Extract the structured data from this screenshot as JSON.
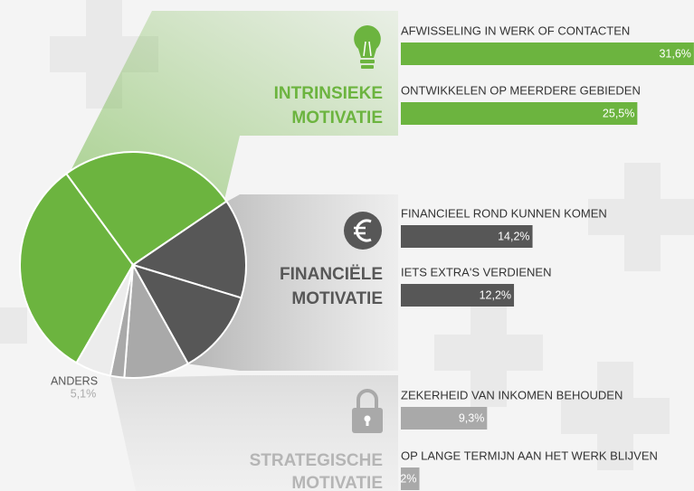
{
  "chart_data": {
    "type": "pie",
    "groups": [
      {
        "name_lines": [
          "INTRINSIEKE",
          "MOTIVATIE"
        ],
        "color": "#6cb43f",
        "categories": [
          "AFWISSELING IN WERK OF CONTACTEN",
          "ONTWIKKELEN OP MEERDERE GEBIEDEN"
        ],
        "values": [
          31.6,
          25.5
        ],
        "value_labels": [
          "31,6%",
          "25,5%"
        ]
      },
      {
        "name_lines": [
          "FINANCIËLE",
          "MOTIVATIE"
        ],
        "color": "#575757",
        "categories": [
          "FINANCIEEL ROND KUNNEN KOMEN",
          "IETS EXTRA'S VERDIENEN"
        ],
        "values": [
          14.2,
          12.2
        ],
        "value_labels": [
          "14,2%",
          "12,2%"
        ]
      },
      {
        "name_lines": [
          "STRATEGISCHE",
          "MOTIVATIE"
        ],
        "color": "#a9a9a9",
        "categories": [
          "ZEKERHEID VAN INKOMEN BEHOUDEN",
          "OP LANGE TERMIJN AAN HET WERK BLIJVEN"
        ],
        "values": [
          9.3,
          2
        ],
        "value_labels": [
          "9,3%",
          "2%"
        ]
      }
    ],
    "other": {
      "category": "ANDERS",
      "value": 5.1,
      "value_label": "5,1%",
      "color": "#ececec"
    }
  }
}
